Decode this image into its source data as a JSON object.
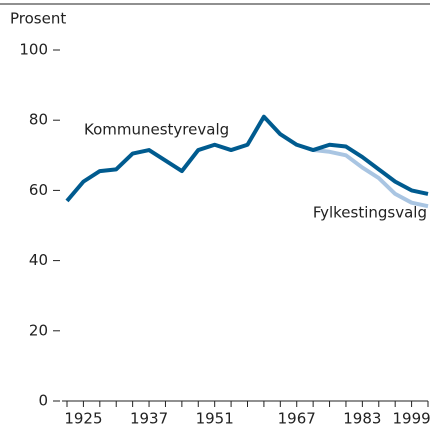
{
  "chart_data": {
    "type": "line",
    "y_axis_label": "Prosent",
    "categories": [
      null,
      "1925",
      null,
      null,
      null,
      "1937",
      null,
      null,
      null,
      "1951",
      null,
      null,
      null,
      null,
      "1967",
      null,
      null,
      null,
      "1983",
      null,
      null,
      "1999",
      null
    ],
    "series": [
      {
        "name": "Kommunestyrevalg",
        "color": "#005b8f",
        "values": [
          57,
          62.5,
          65.5,
          66,
          70.5,
          71.5,
          68.5,
          65.5,
          71.5,
          73,
          71.5,
          73,
          81,
          76,
          73,
          71.5,
          73,
          72.5,
          69.5,
          66,
          62.5,
          60,
          59
        ]
      },
      {
        "name": "Fylkestingsvalg",
        "color": "#a9c5e2",
        "values": [
          null,
          null,
          null,
          null,
          null,
          null,
          null,
          null,
          null,
          null,
          null,
          null,
          null,
          null,
          null,
          71.5,
          71,
          70,
          66.5,
          63.5,
          59,
          56.5,
          55.5
        ]
      }
    ],
    "ylim": [
      0,
      100
    ],
    "yticks": [
      0,
      20,
      40,
      60,
      80,
      100
    ]
  }
}
